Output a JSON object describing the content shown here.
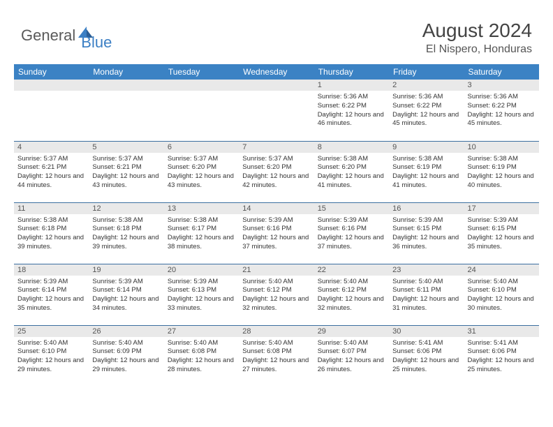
{
  "brand": {
    "word1": "General",
    "word2": "Blue"
  },
  "colors": {
    "header_bg": "#3b82c4",
    "header_text": "#ffffff",
    "daynum_bg": "#e9e9e9",
    "rule": "#3b6fa0",
    "brand_blue": "#3b7fc4",
    "body_text": "#333333"
  },
  "title": "August 2024",
  "location": "El Nispero, Honduras",
  "weekdays": [
    "Sunday",
    "Monday",
    "Tuesday",
    "Wednesday",
    "Thursday",
    "Friday",
    "Saturday"
  ],
  "layout": {
    "first_weekday_index": 4,
    "days_in_month": 31
  },
  "font": {
    "title_size": 28,
    "location_size": 16,
    "header_size": 12,
    "daynum_size": 11,
    "body_size": 9.5
  },
  "days": {
    "1": {
      "sunrise": "5:36 AM",
      "sunset": "6:22 PM",
      "daylight": "12 hours and 46 minutes."
    },
    "2": {
      "sunrise": "5:36 AM",
      "sunset": "6:22 PM",
      "daylight": "12 hours and 45 minutes."
    },
    "3": {
      "sunrise": "5:36 AM",
      "sunset": "6:22 PM",
      "daylight": "12 hours and 45 minutes."
    },
    "4": {
      "sunrise": "5:37 AM",
      "sunset": "6:21 PM",
      "daylight": "12 hours and 44 minutes."
    },
    "5": {
      "sunrise": "5:37 AM",
      "sunset": "6:21 PM",
      "daylight": "12 hours and 43 minutes."
    },
    "6": {
      "sunrise": "5:37 AM",
      "sunset": "6:20 PM",
      "daylight": "12 hours and 43 minutes."
    },
    "7": {
      "sunrise": "5:37 AM",
      "sunset": "6:20 PM",
      "daylight": "12 hours and 42 minutes."
    },
    "8": {
      "sunrise": "5:38 AM",
      "sunset": "6:20 PM",
      "daylight": "12 hours and 41 minutes."
    },
    "9": {
      "sunrise": "5:38 AM",
      "sunset": "6:19 PM",
      "daylight": "12 hours and 41 minutes."
    },
    "10": {
      "sunrise": "5:38 AM",
      "sunset": "6:19 PM",
      "daylight": "12 hours and 40 minutes."
    },
    "11": {
      "sunrise": "5:38 AM",
      "sunset": "6:18 PM",
      "daylight": "12 hours and 39 minutes."
    },
    "12": {
      "sunrise": "5:38 AM",
      "sunset": "6:18 PM",
      "daylight": "12 hours and 39 minutes."
    },
    "13": {
      "sunrise": "5:38 AM",
      "sunset": "6:17 PM",
      "daylight": "12 hours and 38 minutes."
    },
    "14": {
      "sunrise": "5:39 AM",
      "sunset": "6:16 PM",
      "daylight": "12 hours and 37 minutes."
    },
    "15": {
      "sunrise": "5:39 AM",
      "sunset": "6:16 PM",
      "daylight": "12 hours and 37 minutes."
    },
    "16": {
      "sunrise": "5:39 AM",
      "sunset": "6:15 PM",
      "daylight": "12 hours and 36 minutes."
    },
    "17": {
      "sunrise": "5:39 AM",
      "sunset": "6:15 PM",
      "daylight": "12 hours and 35 minutes."
    },
    "18": {
      "sunrise": "5:39 AM",
      "sunset": "6:14 PM",
      "daylight": "12 hours and 35 minutes."
    },
    "19": {
      "sunrise": "5:39 AM",
      "sunset": "6:14 PM",
      "daylight": "12 hours and 34 minutes."
    },
    "20": {
      "sunrise": "5:39 AM",
      "sunset": "6:13 PM",
      "daylight": "12 hours and 33 minutes."
    },
    "21": {
      "sunrise": "5:40 AM",
      "sunset": "6:12 PM",
      "daylight": "12 hours and 32 minutes."
    },
    "22": {
      "sunrise": "5:40 AM",
      "sunset": "6:12 PM",
      "daylight": "12 hours and 32 minutes."
    },
    "23": {
      "sunrise": "5:40 AM",
      "sunset": "6:11 PM",
      "daylight": "12 hours and 31 minutes."
    },
    "24": {
      "sunrise": "5:40 AM",
      "sunset": "6:10 PM",
      "daylight": "12 hours and 30 minutes."
    },
    "25": {
      "sunrise": "5:40 AM",
      "sunset": "6:10 PM",
      "daylight": "12 hours and 29 minutes."
    },
    "26": {
      "sunrise": "5:40 AM",
      "sunset": "6:09 PM",
      "daylight": "12 hours and 29 minutes."
    },
    "27": {
      "sunrise": "5:40 AM",
      "sunset": "6:08 PM",
      "daylight": "12 hours and 28 minutes."
    },
    "28": {
      "sunrise": "5:40 AM",
      "sunset": "6:08 PM",
      "daylight": "12 hours and 27 minutes."
    },
    "29": {
      "sunrise": "5:40 AM",
      "sunset": "6:07 PM",
      "daylight": "12 hours and 26 minutes."
    },
    "30": {
      "sunrise": "5:41 AM",
      "sunset": "6:06 PM",
      "daylight": "12 hours and 25 minutes."
    },
    "31": {
      "sunrise": "5:41 AM",
      "sunset": "6:06 PM",
      "daylight": "12 hours and 25 minutes."
    }
  },
  "labels": {
    "sunrise": "Sunrise:",
    "sunset": "Sunset:",
    "daylight": "Daylight:"
  }
}
